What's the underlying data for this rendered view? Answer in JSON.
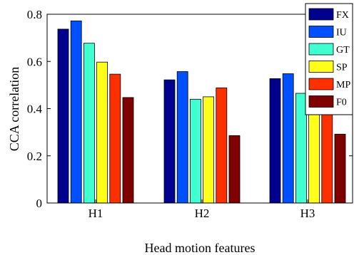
{
  "chart_data": {
    "type": "bar",
    "title": "",
    "xlabel": "Head motion features",
    "ylabel": "CCA correlation",
    "categories": [
      "H1",
      "H2",
      "H3"
    ],
    "ylim": [
      0,
      0.8
    ],
    "yticks": [
      "0",
      "0.2",
      "0.4",
      "0.6",
      "0.8"
    ],
    "grid": false,
    "legend_position": "top-right",
    "series": [
      {
        "name": "FX",
        "color": "#00008f",
        "values": [
          0.737,
          0.522,
          0.527
        ]
      },
      {
        "name": "IU",
        "color": "#0050ff",
        "values": [
          0.772,
          0.557,
          0.548
        ]
      },
      {
        "name": "GT",
        "color": "#40ffd0",
        "values": [
          0.677,
          0.44,
          0.465
        ]
      },
      {
        "name": "SP",
        "color": "#ffff1a",
        "values": [
          0.597,
          0.45,
          0.456
        ]
      },
      {
        "name": "MP",
        "color": "#ff3000",
        "values": [
          0.546,
          0.488,
          0.478
        ]
      },
      {
        "name": "F0",
        "color": "#800000",
        "values": [
          0.447,
          0.286,
          0.292
        ]
      }
    ]
  }
}
